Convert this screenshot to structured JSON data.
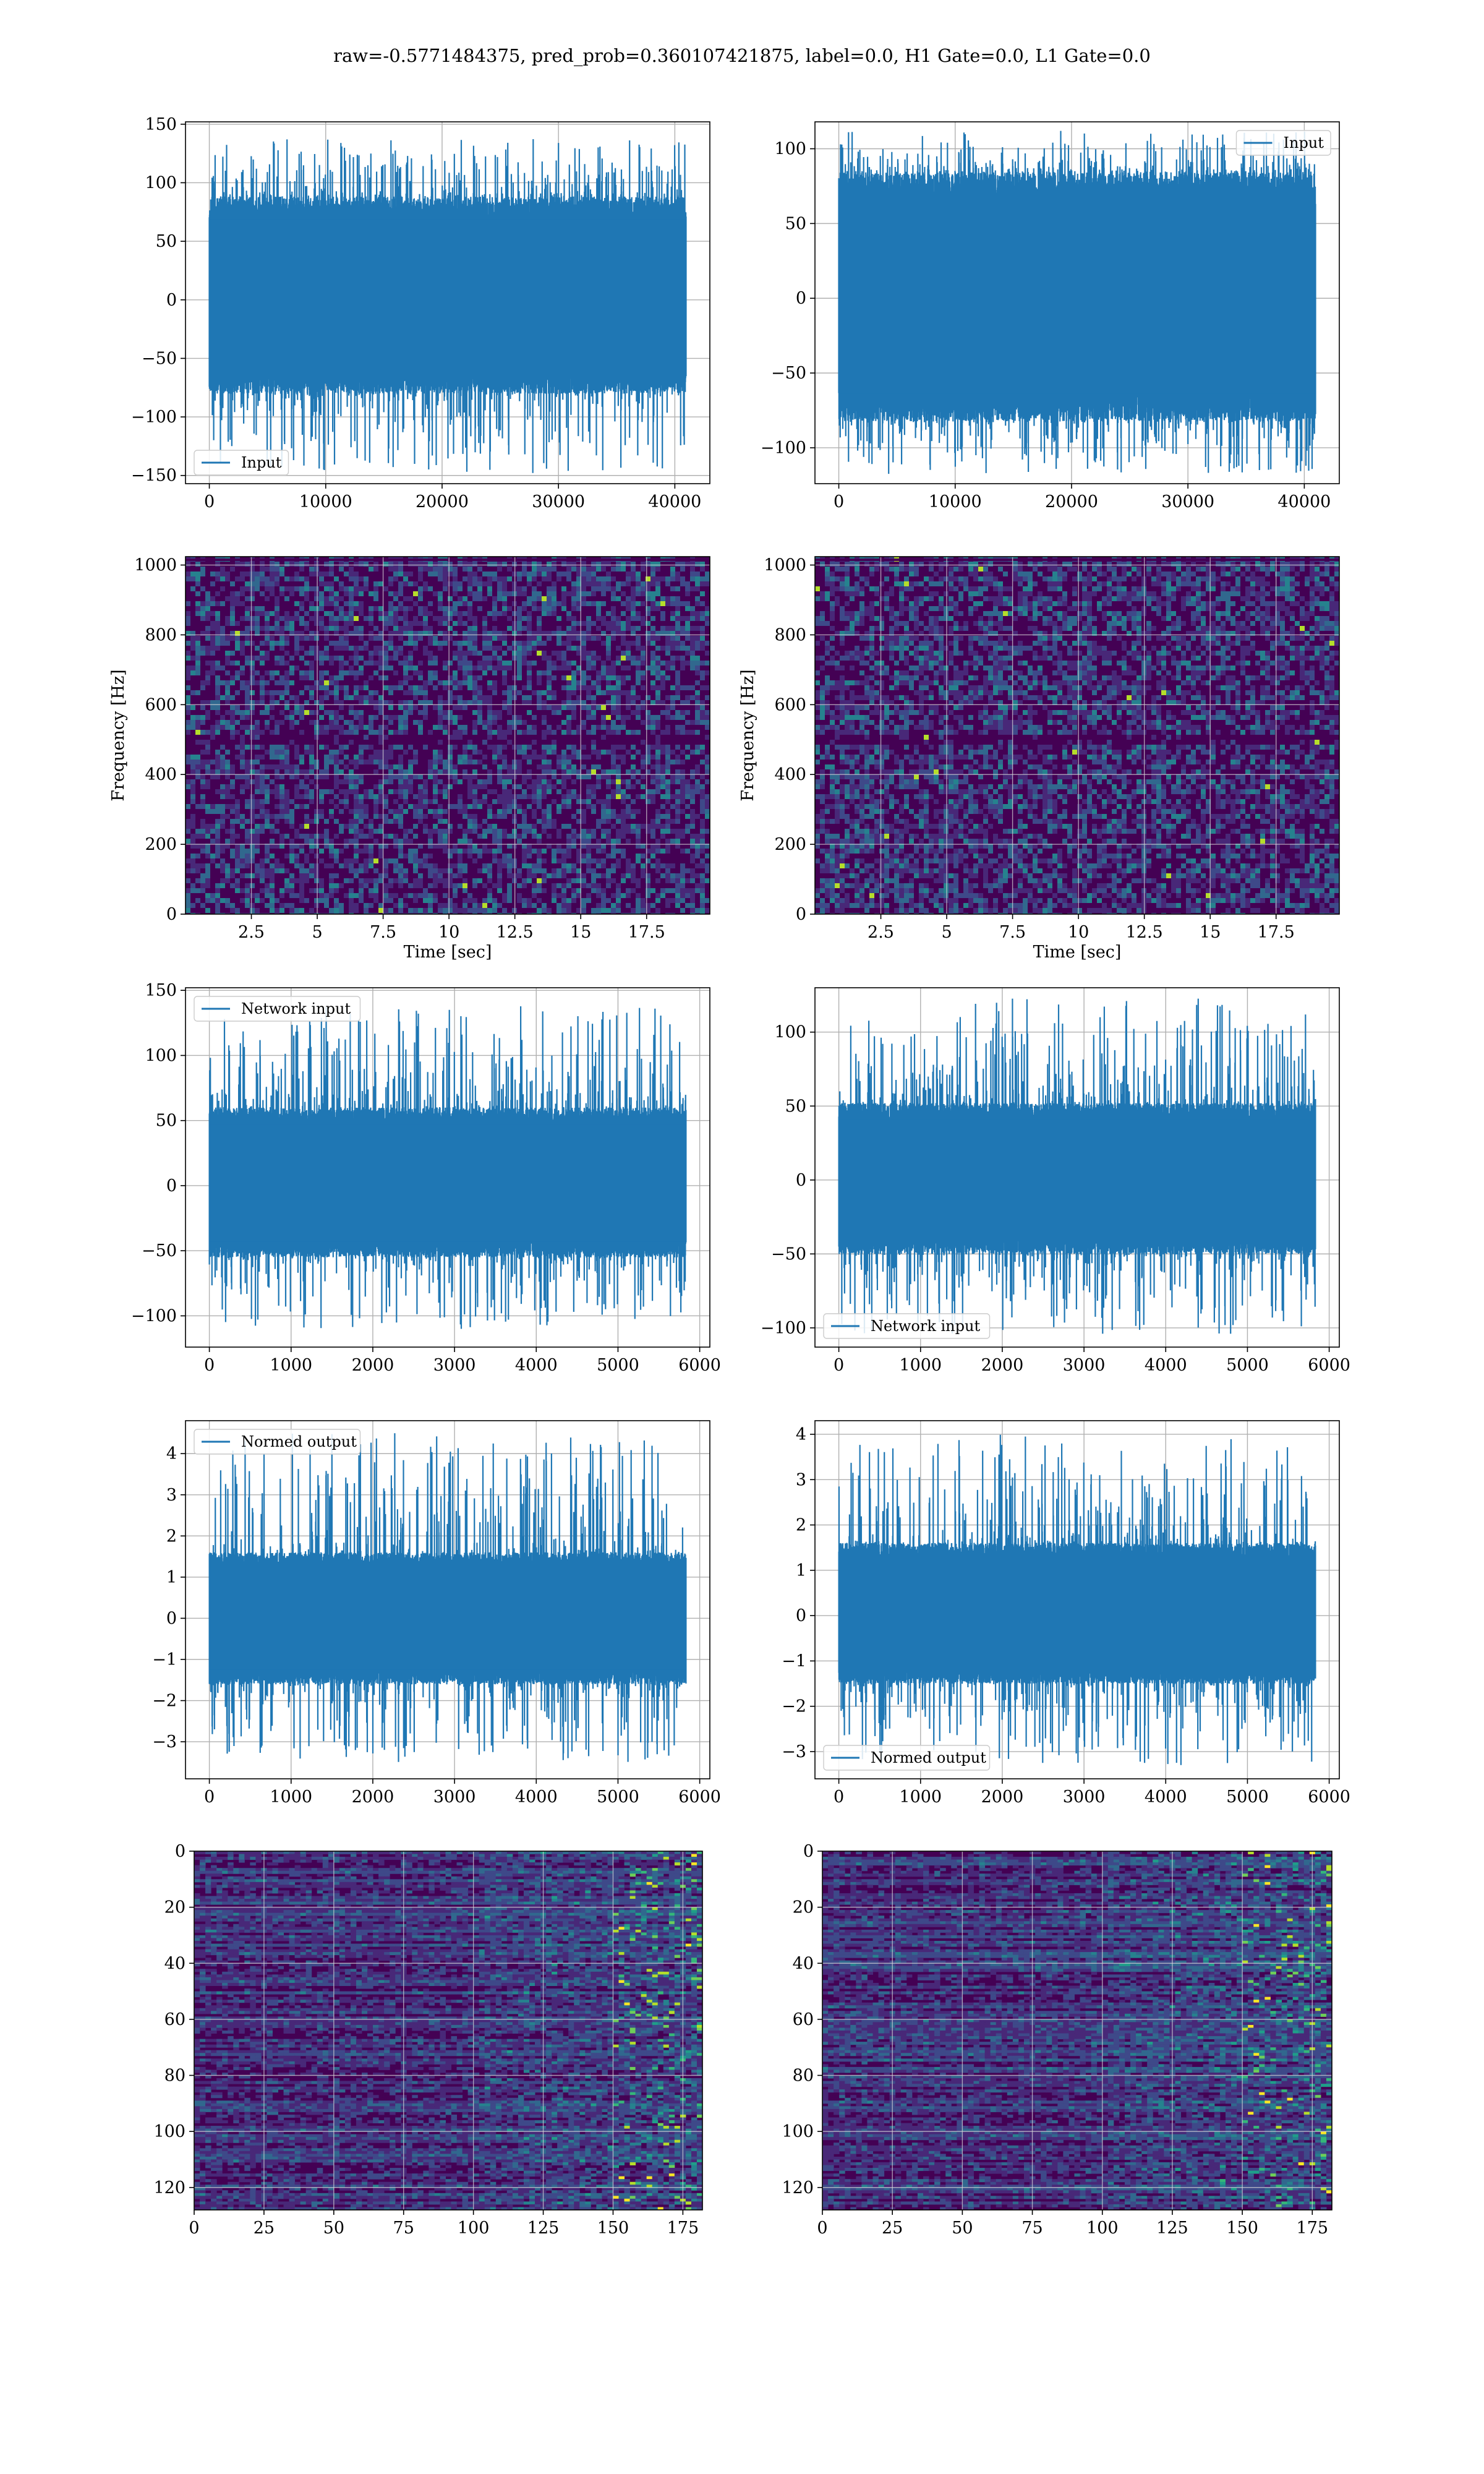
{
  "title": "raw=-0.5771484375, pred_prob=0.360107421875, label=0.0, H1 Gate=0.0, L1 Gate=0.0",
  "colors": {
    "series": "#1f77b4",
    "grid": "#b0b0b0",
    "viridis": [
      "#440154",
      "#482878",
      "#3e4989",
      "#31688e",
      "#26828e",
      "#1f9e89",
      "#35b779",
      "#6ece58",
      "#b5de2b",
      "#fde725"
    ]
  },
  "chart_data": [
    {
      "type": "line",
      "series": [
        {
          "name": "Input"
        }
      ],
      "legend": "lower-left",
      "envelope": {
        "n": 40960,
        "core": [
          -80,
          88
        ],
        "extreme": [
          -148,
          138
        ]
      },
      "xlim": [
        -2048,
        43008
      ],
      "ylim": [
        -157,
        152
      ],
      "xticks": [
        0,
        10000,
        20000,
        30000,
        40000
      ],
      "yticks": [
        -150,
        -100,
        -50,
        0,
        50,
        100,
        150
      ],
      "grid": true
    },
    {
      "type": "line",
      "series": [
        {
          "name": "Input"
        }
      ],
      "legend": "upper-right",
      "envelope": {
        "n": 40960,
        "core": [
          -82,
          84
        ],
        "extreme": [
          -118,
          112
        ]
      },
      "xlim": [
        -2048,
        43008
      ],
      "ylim": [
        -124,
        118
      ],
      "xticks": [
        0,
        10000,
        20000,
        30000,
        40000
      ],
      "yticks": [
        -100,
        -50,
        0,
        50,
        100
      ],
      "grid": true
    },
    {
      "type": "heatmap",
      "xlabel": "Time [sec]",
      "ylabel": "Frequency [Hz]",
      "xlim": [
        0,
        19.9
      ],
      "ylim": [
        0,
        1024
      ],
      "xticks": [
        2.5,
        5.0,
        7.5,
        10.0,
        12.5,
        15.0,
        17.5
      ],
      "yticks": [
        0,
        200,
        400,
        600,
        800,
        1000
      ],
      "grid": true
    },
    {
      "type": "heatmap",
      "xlabel": "Time [sec]",
      "ylabel": "Frequency [Hz]",
      "xlim": [
        0,
        19.9
      ],
      "ylim": [
        0,
        1024
      ],
      "xticks": [
        2.5,
        5.0,
        7.5,
        10.0,
        12.5,
        15.0,
        17.5
      ],
      "yticks": [
        0,
        200,
        400,
        600,
        800,
        1000
      ],
      "grid": true
    },
    {
      "type": "line",
      "series": [
        {
          "name": "Network input"
        }
      ],
      "legend": "upper-left",
      "envelope": {
        "n": 5832,
        "core": [
          -55,
          60
        ],
        "extreme": [
          -110,
          138
        ]
      },
      "xlim": [
        -292,
        6124
      ],
      "ylim": [
        -124,
        152
      ],
      "xticks": [
        0,
        1000,
        2000,
        3000,
        4000,
        5000,
        6000
      ],
      "yticks": [
        -100,
        -50,
        0,
        50,
        100,
        150
      ],
      "grid": true
    },
    {
      "type": "line",
      "series": [
        {
          "name": "Network input"
        }
      ],
      "legend": "lower-left",
      "envelope": {
        "n": 5832,
        "core": [
          -50,
          52
        ],
        "extreme": [
          -104,
          123
        ]
      },
      "xlim": [
        -292,
        6124
      ],
      "ylim": [
        -113,
        130
      ],
      "xticks": [
        0,
        1000,
        2000,
        3000,
        4000,
        5000,
        6000
      ],
      "yticks": [
        -100,
        -50,
        0,
        50,
        100
      ],
      "grid": true
    },
    {
      "type": "line",
      "series": [
        {
          "name": "Normed output"
        }
      ],
      "legend": "upper-left",
      "envelope": {
        "n": 5832,
        "core": [
          -1.6,
          1.6
        ],
        "extreme": [
          -3.5,
          4.5
        ]
      },
      "xlim": [
        -292,
        6124
      ],
      "ylim": [
        -3.9,
        4.8
      ],
      "xticks": [
        0,
        1000,
        2000,
        3000,
        4000,
        5000,
        6000
      ],
      "yticks": [
        -3,
        -2,
        -1,
        0,
        1,
        2,
        3,
        4
      ],
      "grid": true
    },
    {
      "type": "line",
      "series": [
        {
          "name": "Normed output"
        }
      ],
      "legend": "lower-left",
      "envelope": {
        "n": 5832,
        "core": [
          -1.5,
          1.6
        ],
        "extreme": [
          -3.3,
          4.0
        ]
      },
      "xlim": [
        -292,
        6124
      ],
      "ylim": [
        -3.6,
        4.3
      ],
      "xticks": [
        0,
        1000,
        2000,
        3000,
        4000,
        5000,
        6000
      ],
      "yticks": [
        -3,
        -2,
        -1,
        0,
        1,
        2,
        3,
        4
      ],
      "grid": true
    },
    {
      "type": "heatmap",
      "xlim": [
        0,
        182
      ],
      "ylim": [
        128,
        0
      ],
      "xticks": [
        0,
        25,
        50,
        75,
        100,
        125,
        150,
        175
      ],
      "yticks": [
        0,
        20,
        40,
        60,
        80,
        100,
        120
      ],
      "grid": true
    },
    {
      "type": "heatmap",
      "xlim": [
        0,
        182
      ],
      "ylim": [
        128,
        0
      ],
      "xticks": [
        0,
        25,
        50,
        75,
        100,
        125,
        150,
        175
      ],
      "yticks": [
        0,
        20,
        40,
        60,
        80,
        100,
        120
      ],
      "grid": true
    }
  ]
}
